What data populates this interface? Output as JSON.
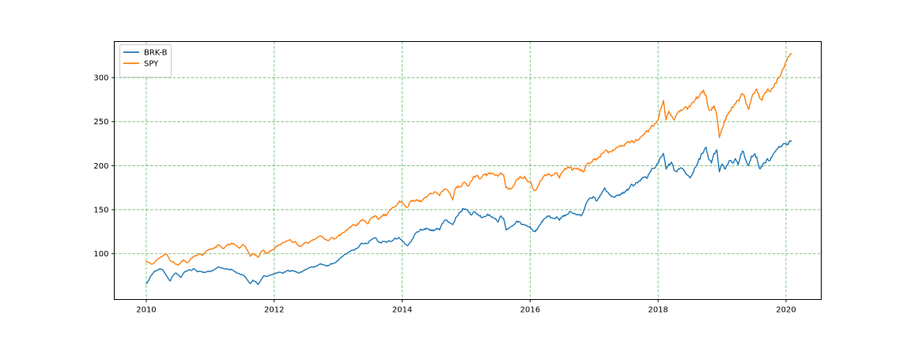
{
  "chart_data": {
    "type": "line",
    "title": "",
    "xlabel": "",
    "ylabel": "",
    "x_unit": "year",
    "x_start": 2010.0,
    "x_step": 0.0416667,
    "xlim": [
      2009.5,
      2020.55
    ],
    "ylim": [
      48,
      341
    ],
    "x_ticks": [
      2010,
      2012,
      2014,
      2016,
      2018,
      2020
    ],
    "x_tick_labels": [
      "2010",
      "2012",
      "2014",
      "2016",
      "2018",
      "2020"
    ],
    "y_ticks": [
      100,
      150,
      200,
      250,
      300
    ],
    "y_tick_labels": [
      "100",
      "150",
      "200",
      "250",
      "300"
    ],
    "grid": {
      "visible": true,
      "color": "green",
      "alpha": 0.5,
      "style": "dashed"
    },
    "legend": {
      "position": "upper-left"
    },
    "noise_pct": 0.8,
    "series": [
      {
        "name": "BRK-B",
        "color": "#1f77b4",
        "values": [
          66,
          70,
          76,
          80,
          81,
          83,
          82,
          78,
          73,
          69,
          75,
          78,
          76,
          73,
          78,
          80,
          82,
          81,
          83,
          80,
          80,
          79,
          79,
          80,
          80,
          81,
          83,
          85,
          84,
          83,
          83,
          82,
          82,
          80,
          78,
          77,
          76,
          74,
          70,
          66,
          70,
          68,
          65,
          70,
          75,
          74,
          75,
          76,
          77,
          78,
          79,
          78,
          79,
          81,
          80,
          81,
          80,
          78,
          79,
          81,
          82,
          84,
          85,
          85,
          86,
          88,
          88,
          87,
          86,
          88,
          89,
          90,
          92,
          96,
          98,
          100,
          102,
          104,
          104,
          106,
          109,
          112,
          112,
          112,
          115,
          117,
          118,
          114,
          112,
          114,
          113,
          115,
          114,
          117,
          117,
          118,
          115,
          111,
          109,
          113,
          117,
          123,
          125,
          128,
          127,
          129,
          128,
          126,
          127,
          129,
          127,
          134,
          138,
          137,
          135,
          133,
          140,
          144,
          148,
          151,
          150,
          147,
          144,
          148,
          145,
          143,
          141,
          142,
          145,
          143,
          141,
          140,
          136,
          143,
          140,
          127,
          129,
          131,
          133,
          137,
          136,
          133,
          133,
          131,
          131,
          126,
          125,
          130,
          134,
          139,
          141,
          143,
          141,
          140,
          142,
          138,
          142,
          144,
          145,
          148,
          146,
          145,
          144,
          143,
          148,
          157,
          162,
          163,
          164,
          160,
          164,
          170,
          175,
          170,
          167,
          165,
          165,
          166,
          167,
          170,
          171,
          174,
          179,
          178,
          181,
          183,
          185,
          187,
          186,
          193,
          197,
          198,
          203,
          210,
          214,
          196,
          202,
          204,
          195,
          193,
          196,
          197,
          194,
          189,
          186,
          192,
          198,
          204,
          211,
          215,
          221,
          207,
          203,
          214,
          218,
          193,
          202,
          196,
          201,
          206,
          203,
          208,
          201,
          213,
          216,
          206,
          200,
          211,
          213,
          210,
          197,
          199,
          203,
          208,
          206,
          212,
          216,
          220,
          222,
          225,
          224,
          226,
          228
        ]
      },
      {
        "name": "SPY",
        "color": "#ff7f0e",
        "values": [
          92,
          90,
          88,
          90,
          93,
          95,
          97,
          100,
          98,
          92,
          91,
          88,
          87,
          90,
          93,
          90,
          91,
          95,
          97,
          98,
          100,
          98,
          101,
          104,
          105,
          106,
          107,
          110,
          108,
          106,
          109,
          110,
          112,
          111,
          109,
          106,
          110,
          109,
          104,
          97,
          100,
          98,
          96,
          102,
          104,
          100,
          102,
          104,
          105,
          109,
          110,
          112,
          113,
          115,
          116,
          113,
          114,
          109,
          108,
          111,
          113,
          112,
          115,
          116,
          118,
          120,
          119,
          117,
          115,
          117,
          118,
          117,
          120,
          122,
          124,
          126,
          129,
          131,
          133,
          132,
          136,
          139,
          137,
          134,
          139,
          142,
          143,
          139,
          141,
          145,
          143,
          148,
          151,
          153,
          155,
          160,
          158,
          155,
          153,
          159,
          161,
          160,
          161,
          159,
          162,
          164,
          167,
          168,
          170,
          169,
          166,
          171,
          173,
          172,
          168,
          161,
          174,
          177,
          176,
          181,
          180,
          177,
          183,
          188,
          189,
          185,
          188,
          190,
          190,
          192,
          191,
          189,
          188,
          192,
          190,
          175,
          173,
          174,
          178,
          184,
          187,
          186,
          188,
          182,
          182,
          174,
          172,
          178,
          183,
          187,
          189,
          190,
          188,
          190,
          192,
          186,
          193,
          197,
          198,
          198,
          195,
          197,
          197,
          194,
          193,
          200,
          203,
          204,
          207,
          208,
          210,
          214,
          217,
          216,
          216,
          218,
          219,
          221,
          223,
          223,
          225,
          227,
          228,
          226,
          229,
          231,
          234,
          237,
          239,
          242,
          245,
          248,
          252,
          264,
          274,
          252,
          262,
          256,
          252,
          258,
          261,
          263,
          266,
          264,
          267,
          272,
          275,
          278,
          282,
          286,
          280,
          264,
          263,
          268,
          257,
          232,
          242,
          252,
          257,
          262,
          266,
          270,
          274,
          279,
          281,
          270,
          264,
          276,
          282,
          287,
          277,
          274,
          282,
          287,
          284,
          288,
          294,
          299,
          303,
          310,
          318,
          324,
          327
        ]
      }
    ]
  }
}
